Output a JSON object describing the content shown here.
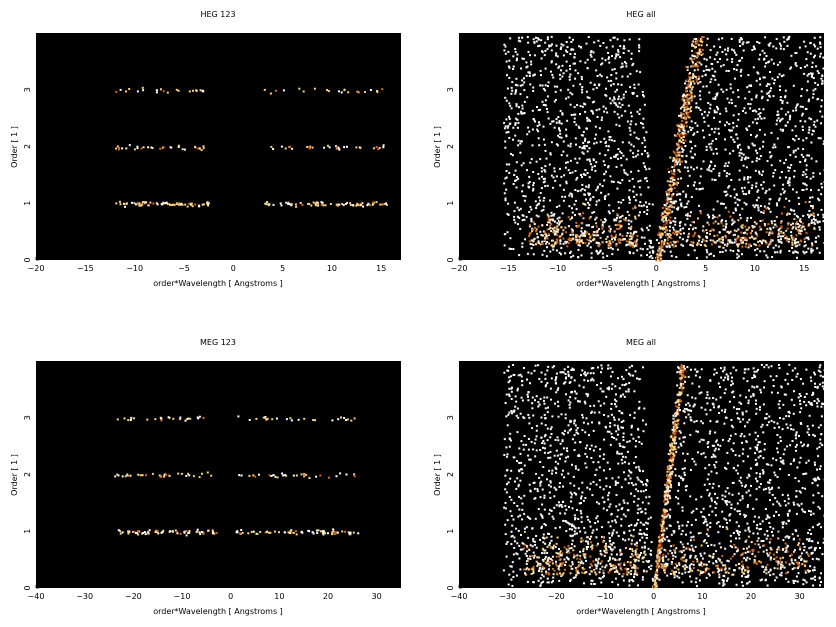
{
  "chart_data": [
    {
      "type": "heatmap",
      "title": "HEG 123",
      "xlabel": "order*Wavelength [ Angstroms ]",
      "ylabel": "Order [ 1 ]",
      "xlim": [
        -20,
        17
      ],
      "ylim": [
        0,
        4
      ],
      "xticks": [
        -20,
        -15,
        -10,
        -5,
        0,
        5,
        10,
        15
      ],
      "yticks": [
        0,
        1,
        2,
        3
      ],
      "colormap": [
        "#000000",
        "#7a1a00",
        "#d2691e",
        "#ffd27f",
        "#ffffff"
      ],
      "grid": false,
      "density": "sparse",
      "wedge_open_half_range": 0,
      "bands": [
        {
          "order": 1,
          "x_ranges": [
            [
              -12,
              -2.5
            ],
            [
              3,
              15.5
            ]
          ],
          "strength": 1.0
        },
        {
          "order": 2,
          "x_ranges": [
            [
              -12,
              -2.5
            ],
            [
              3,
              15.5
            ]
          ],
          "strength": 0.45
        },
        {
          "order": 3,
          "x_ranges": [
            [
              -12,
              -2.5
            ],
            [
              3,
              15.5
            ]
          ],
          "strength": 0.3
        }
      ]
    },
    {
      "type": "heatmap",
      "title": "HEG all",
      "xlabel": "order*Wavelength [ Angstroms ]",
      "ylabel": "Order [ 1 ]",
      "xlim": [
        -20,
        17
      ],
      "ylim": [
        0,
        4
      ],
      "xticks": [
        -20,
        -15,
        -10,
        -5,
        0,
        5,
        10,
        15
      ],
      "yticks": [
        0,
        1,
        2,
        3
      ],
      "colormap": [
        "#000000",
        "#7a1a00",
        "#d2691e",
        "#ffd27f",
        "#ffffff"
      ],
      "grid": false,
      "density": "dense",
      "bright_ridge_x_per_order": 1.1,
      "bands": [
        {
          "order": 1,
          "x_ranges": [
            [
              -13,
              -2
            ],
            [
              1,
              16
            ]
          ],
          "strength": 1.0
        }
      ]
    },
    {
      "type": "heatmap",
      "title": "MEG 123",
      "xlabel": "order*Wavelength [ Angstroms ]",
      "ylabel": "Order [ 1 ]",
      "xlim": [
        -40,
        35
      ],
      "ylim": [
        0,
        4
      ],
      "xticks": [
        -40,
        -30,
        -20,
        -10,
        0,
        10,
        20,
        30
      ],
      "yticks": [
        0,
        1,
        2,
        3
      ],
      "colormap": [
        "#000000",
        "#7a1a00",
        "#d2691e",
        "#ffd27f",
        "#ffffff"
      ],
      "grid": false,
      "density": "sparse",
      "bands": [
        {
          "order": 1,
          "x_ranges": [
            [
              -24,
              -3
            ],
            [
              1,
              26
            ]
          ],
          "strength": 1.0
        },
        {
          "order": 2,
          "x_ranges": [
            [
              -24,
              -3
            ],
            [
              1,
              26
            ]
          ],
          "strength": 0.45
        },
        {
          "order": 3,
          "x_ranges": [
            [
              -24,
              -3
            ],
            [
              1,
              26
            ]
          ],
          "strength": 0.35
        }
      ]
    },
    {
      "type": "heatmap",
      "title": "MEG all",
      "xlabel": "order*Wavelength [ Angstroms ]",
      "ylabel": "Order [ 1 ]",
      "xlim": [
        -40,
        35
      ],
      "ylim": [
        0,
        4
      ],
      "xticks": [
        -40,
        -30,
        -20,
        -10,
        0,
        10,
        20,
        30
      ],
      "yticks": [
        0,
        1,
        2,
        3
      ],
      "colormap": [
        "#000000",
        "#7a1a00",
        "#d2691e",
        "#ffd27f",
        "#ffffff"
      ],
      "grid": false,
      "density": "dense",
      "bright_ridge_x_per_order": 1.5,
      "bands": [
        {
          "order": 1,
          "x_ranges": [
            [
              -27,
              -2
            ],
            [
              1,
              32
            ]
          ],
          "strength": 1.0
        }
      ]
    }
  ]
}
